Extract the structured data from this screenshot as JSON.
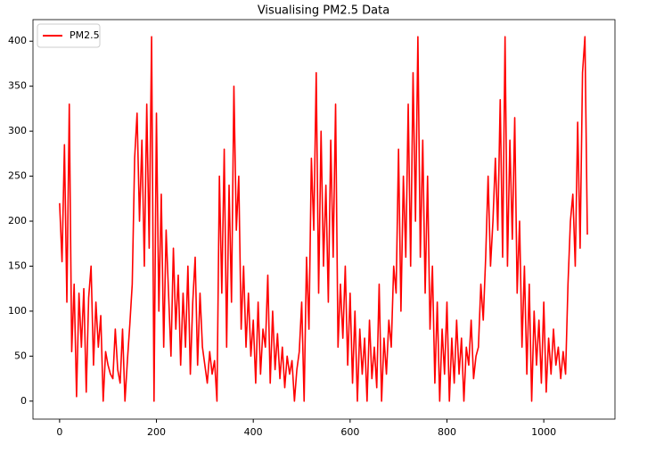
{
  "chart_data": {
    "type": "line",
    "title": "Visualising PM2.5 Data",
    "x": [
      0,
      5,
      10,
      15,
      20,
      25,
      30,
      35,
      40,
      45,
      50,
      55,
      60,
      65,
      70,
      75,
      80,
      85,
      90,
      95,
      100,
      105,
      110,
      115,
      120,
      125,
      130,
      135,
      140,
      145,
      150,
      155,
      160,
      165,
      170,
      175,
      180,
      185,
      190,
      195,
      200,
      205,
      210,
      215,
      220,
      225,
      230,
      235,
      240,
      245,
      250,
      255,
      260,
      265,
      270,
      275,
      280,
      285,
      290,
      295,
      300,
      305,
      310,
      315,
      320,
      325,
      330,
      335,
      340,
      345,
      350,
      355,
      360,
      365,
      370,
      375,
      380,
      385,
      390,
      395,
      400,
      405,
      410,
      415,
      420,
      425,
      430,
      435,
      440,
      445,
      450,
      455,
      460,
      465,
      470,
      475,
      480,
      485,
      490,
      495,
      500,
      505,
      510,
      515,
      520,
      525,
      530,
      535,
      540,
      545,
      550,
      555,
      560,
      565,
      570,
      575,
      580,
      585,
      590,
      595,
      600,
      605,
      610,
      615,
      620,
      625,
      630,
      635,
      640,
      645,
      650,
      655,
      660,
      665,
      670,
      675,
      680,
      685,
      690,
      695,
      700,
      705,
      710,
      715,
      720,
      725,
      730,
      735,
      740,
      745,
      750,
      755,
      760,
      765,
      770,
      775,
      780,
      785,
      790,
      795,
      800,
      805,
      810,
      815,
      820,
      825,
      830,
      835,
      840,
      845,
      850,
      855,
      860,
      865,
      870,
      875,
      880,
      885,
      890,
      895,
      900,
      905,
      910,
      915,
      920,
      925,
      930,
      935,
      940,
      945,
      950,
      955,
      960,
      965,
      970,
      975,
      980,
      985,
      990,
      995,
      1000,
      1005,
      1010,
      1015,
      1020,
      1025,
      1030,
      1035,
      1040,
      1045,
      1050,
      1055,
      1060,
      1065,
      1070,
      1075,
      1080,
      1085,
      1090
    ],
    "series": [
      {
        "name": "PM2.5",
        "color": "#ff0000",
        "values": [
          220,
          155,
          285,
          110,
          330,
          55,
          130,
          5,
          120,
          60,
          125,
          10,
          115,
          150,
          40,
          110,
          60,
          95,
          0,
          55,
          40,
          30,
          25,
          80,
          35,
          20,
          80,
          0,
          45,
          85,
          130,
          270,
          320,
          200,
          290,
          150,
          330,
          170,
          405,
          0,
          320,
          100,
          230,
          60,
          190,
          120,
          50,
          170,
          80,
          140,
          40,
          120,
          60,
          150,
          30,
          110,
          160,
          40,
          120,
          60,
          40,
          20,
          55,
          30,
          45,
          0,
          250,
          120,
          280,
          60,
          240,
          110,
          350,
          190,
          250,
          80,
          150,
          60,
          120,
          50,
          90,
          20,
          110,
          30,
          80,
          60,
          140,
          20,
          100,
          35,
          75,
          25,
          60,
          15,
          50,
          30,
          45,
          0,
          35,
          55,
          110,
          0,
          160,
          80,
          270,
          190,
          365,
          120,
          300,
          150,
          240,
          110,
          290,
          160,
          330,
          60,
          130,
          70,
          150,
          40,
          120,
          20,
          100,
          0,
          80,
          30,
          70,
          0,
          90,
          25,
          60,
          15,
          130,
          0,
          70,
          30,
          90,
          60,
          150,
          120,
          280,
          100,
          250,
          160,
          330,
          150,
          365,
          200,
          405,
          160,
          290,
          120,
          250,
          80,
          150,
          20,
          110,
          0,
          80,
          30,
          110,
          0,
          70,
          20,
          90,
          30,
          70,
          0,
          60,
          40,
          90,
          25,
          50,
          60,
          130,
          90,
          160,
          250,
          150,
          200,
          270,
          190,
          335,
          160,
          405,
          150,
          290,
          180,
          315,
          120,
          200,
          60,
          150,
          30,
          130,
          0,
          100,
          40,
          90,
          20,
          110,
          10,
          70,
          30,
          80,
          40,
          60,
          25,
          55,
          30,
          130,
          200,
          230,
          150,
          310,
          170,
          365,
          405,
          185
        ]
      }
    ],
    "xlim": [
      -55,
      1147
    ],
    "ylim": [
      -20,
      424
    ],
    "xticks": [
      0,
      200,
      400,
      600,
      800,
      1000
    ],
    "yticks": [
      0,
      50,
      100,
      150,
      200,
      250,
      300,
      350,
      400
    ],
    "legend": "upper left",
    "grid": false
  }
}
